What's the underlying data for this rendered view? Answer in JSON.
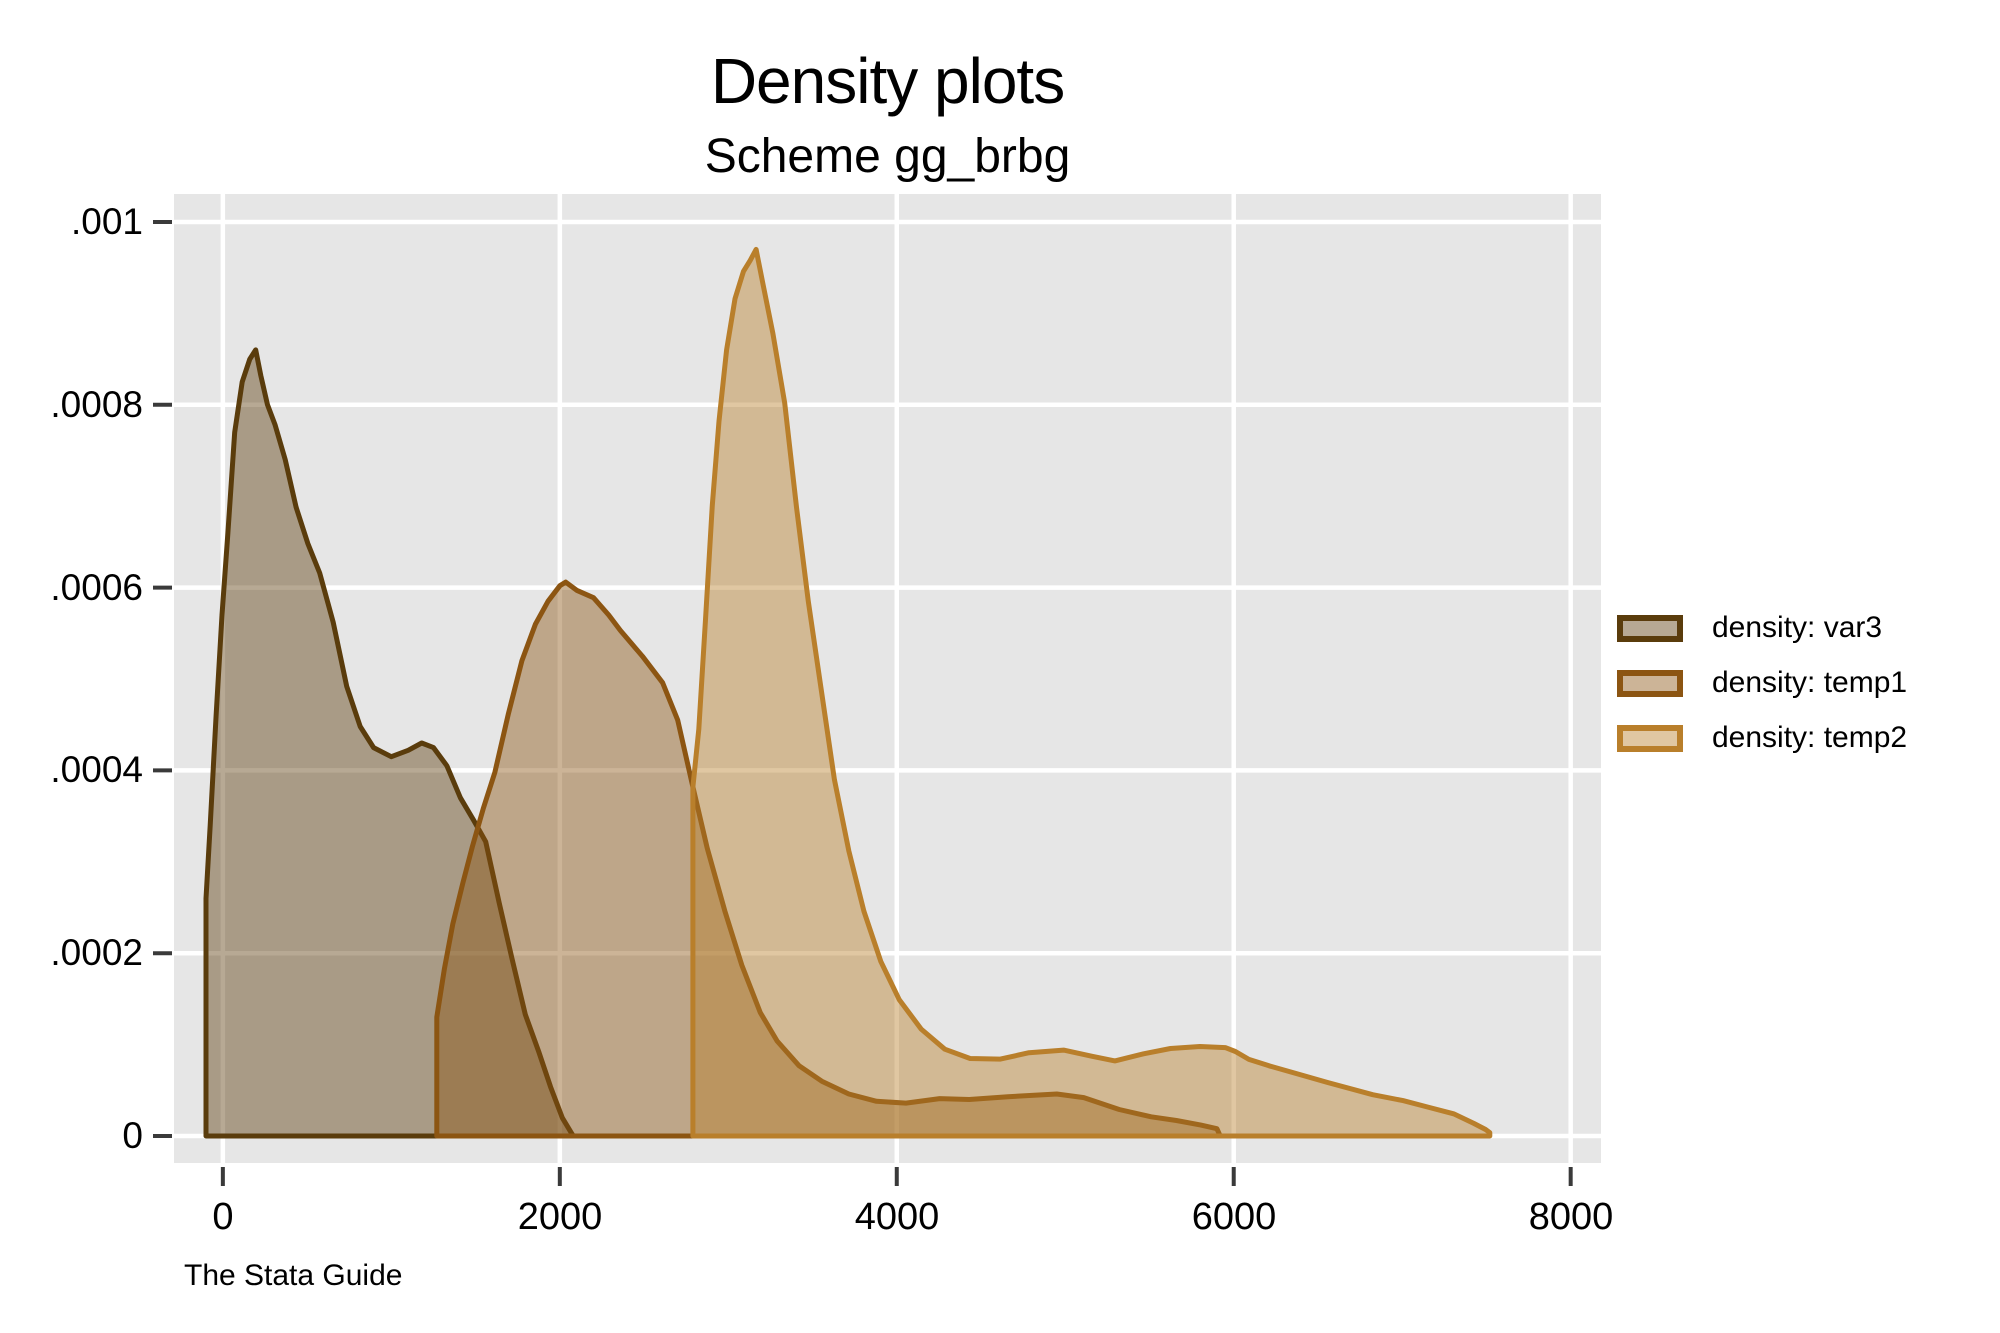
{
  "header": {
    "title": "Density plots",
    "subtitle": "Scheme gg_brbg"
  },
  "footer": {
    "credit": "The Stata Guide"
  },
  "legend": {
    "items": [
      {
        "label": "density: var3",
        "color": "#5a3c0c"
      },
      {
        "label": "density: temp1",
        "color": "#8c5512"
      },
      {
        "label": "density: temp2",
        "color": "#b97f2b"
      }
    ]
  },
  "chart_data": {
    "type": "area",
    "title": "Density plots",
    "subtitle": "Scheme gg_brbg",
    "xlabel": "",
    "ylabel": "",
    "xlim": [
      -290,
      8180
    ],
    "ylim": [
      -2.95e-05,
      0.0010306
    ],
    "grid": true,
    "legend_position": "right",
    "plot_bg": "#e6e6e6",
    "grid_color": "#ffffff",
    "tick_color": "#3a3a3a",
    "text_color": "#000000",
    "fill_opacity": 0.44,
    "line_width": 5,
    "x_ticks": [
      {
        "value": 0,
        "label": "0"
      },
      {
        "value": 2000,
        "label": "2000"
      },
      {
        "value": 4000,
        "label": "4000"
      },
      {
        "value": 6000,
        "label": "6000"
      },
      {
        "value": 8000,
        "label": "8000"
      }
    ],
    "y_ticks": [
      {
        "value": 0,
        "label": "0"
      },
      {
        "value": 0.0002,
        "label": ".0002"
      },
      {
        "value": 0.0004,
        "label": ".0004"
      },
      {
        "value": 0.0006,
        "label": ".0006"
      },
      {
        "value": 0.0008,
        "label": ".0008"
      },
      {
        "value": 0.001,
        "label": ".001"
      }
    ],
    "series": [
      {
        "name": "density: var3",
        "color": "#5a3c0c",
        "points": [
          [
            -100,
            0
          ],
          [
            -100,
            0.00026
          ],
          [
            -75,
            0.00034
          ],
          [
            -40,
            0.00046
          ],
          [
            -5,
            0.00057
          ],
          [
            30,
            0.00066
          ],
          [
            70,
            0.00077
          ],
          [
            115,
            0.000825
          ],
          [
            160,
            0.00085
          ],
          [
            195,
            0.00086
          ],
          [
            225,
            0.000832
          ],
          [
            265,
            0.0008
          ],
          [
            310,
            0.000778
          ],
          [
            370,
            0.00074
          ],
          [
            435,
            0.000688
          ],
          [
            505,
            0.000648
          ],
          [
            575,
            0.000616
          ],
          [
            655,
            0.000562
          ],
          [
            735,
            0.000492
          ],
          [
            815,
            0.000448
          ],
          [
            895,
            0.000425
          ],
          [
            1000,
            0.000415
          ],
          [
            1100,
            0.000422
          ],
          [
            1180,
            0.00043
          ],
          [
            1250,
            0.000425
          ],
          [
            1330,
            0.000405
          ],
          [
            1410,
            0.00037
          ],
          [
            1490,
            0.000345
          ],
          [
            1560,
            0.000322
          ],
          [
            1640,
            0.000255
          ],
          [
            1715,
            0.000195
          ],
          [
            1795,
            0.000133
          ],
          [
            1875,
            9.2e-05
          ],
          [
            1945,
            5.4e-05
          ],
          [
            2015,
            2e-05
          ],
          [
            2070,
            3e-06
          ],
          [
            2080,
            0
          ]
        ]
      },
      {
        "name": "density: temp1",
        "color": "#8c5512",
        "points": [
          [
            1270,
            0
          ],
          [
            1270,
            0.00013
          ],
          [
            1315,
            0.000183
          ],
          [
            1365,
            0.000232
          ],
          [
            1425,
            0.000277
          ],
          [
            1480,
            0.000316
          ],
          [
            1545,
            0.000358
          ],
          [
            1615,
            0.000398
          ],
          [
            1695,
            0.000462
          ],
          [
            1775,
            0.00052
          ],
          [
            1855,
            0.00056
          ],
          [
            1930,
            0.000585
          ],
          [
            2000,
            0.000602
          ],
          [
            2035,
            0.000606
          ],
          [
            2100,
            0.000597
          ],
          [
            2200,
            0.000589
          ],
          [
            2290,
            0.00057
          ],
          [
            2360,
            0.000553
          ],
          [
            2490,
            0.000525
          ],
          [
            2610,
            0.000496
          ],
          [
            2700,
            0.000455
          ],
          [
            2790,
            0.000382
          ],
          [
            2875,
            0.000315
          ],
          [
            2980,
            0.000246
          ],
          [
            3080,
            0.000187
          ],
          [
            3190,
            0.000135
          ],
          [
            3290,
            0.000104
          ],
          [
            3420,
            7.7e-05
          ],
          [
            3555,
            6e-05
          ],
          [
            3715,
            4.6e-05
          ],
          [
            3880,
            3.8e-05
          ],
          [
            4055,
            3.6e-05
          ],
          [
            4255,
            4.1e-05
          ],
          [
            4430,
            4e-05
          ],
          [
            4660,
            4.3e-05
          ],
          [
            4950,
            4.6e-05
          ],
          [
            5110,
            4.2e-05
          ],
          [
            5320,
            2.9e-05
          ],
          [
            5510,
            2.1e-05
          ],
          [
            5660,
            1.7e-05
          ],
          [
            5805,
            1.2e-05
          ],
          [
            5900,
            8e-06
          ],
          [
            5920,
            0
          ]
        ]
      },
      {
        "name": "density: temp2",
        "color": "#b97f2b",
        "points": [
          [
            2790,
            0
          ],
          [
            2790,
            0.000382
          ],
          [
            2825,
            0.000445
          ],
          [
            2865,
            0.000565
          ],
          [
            2905,
            0.00069
          ],
          [
            2945,
            0.000782
          ],
          [
            2990,
            0.00086
          ],
          [
            3040,
            0.000916
          ],
          [
            3090,
            0.000946
          ],
          [
            3130,
            0.000958
          ],
          [
            3165,
            0.00097
          ],
          [
            3205,
            0.000933
          ],
          [
            3265,
            0.000878
          ],
          [
            3335,
            0.000802
          ],
          [
            3405,
            0.000688
          ],
          [
            3475,
            0.000585
          ],
          [
            3550,
            0.00049
          ],
          [
            3630,
            0.00039
          ],
          [
            3715,
            0.000312
          ],
          [
            3805,
            0.000246
          ],
          [
            3905,
            0.000191
          ],
          [
            4015,
            0.000149
          ],
          [
            4145,
            0.000117
          ],
          [
            4285,
            9.5e-05
          ],
          [
            4435,
            8.48e-05
          ],
          [
            4615,
            8.42e-05
          ],
          [
            4785,
            9.12e-05
          ],
          [
            4990,
            9.4e-05
          ],
          [
            5160,
            8.72e-05
          ],
          [
            5295,
            8.22e-05
          ],
          [
            5465,
            9e-05
          ],
          [
            5625,
            9.58e-05
          ],
          [
            5800,
            9.8e-05
          ],
          [
            5950,
            9.68e-05
          ],
          [
            6010,
            9.25e-05
          ],
          [
            6090,
            8.38e-05
          ],
          [
            6210,
            7.68e-05
          ],
          [
            6360,
            6.9e-05
          ],
          [
            6560,
            5.85e-05
          ],
          [
            6825,
            4.52e-05
          ],
          [
            7005,
            3.88e-05
          ],
          [
            7150,
            3.18e-05
          ],
          [
            7305,
            2.43e-05
          ],
          [
            7425,
            1.38e-05
          ],
          [
            7495,
            7.2e-06
          ],
          [
            7520,
            3.8e-06
          ],
          [
            7520,
            0
          ]
        ]
      }
    ]
  }
}
